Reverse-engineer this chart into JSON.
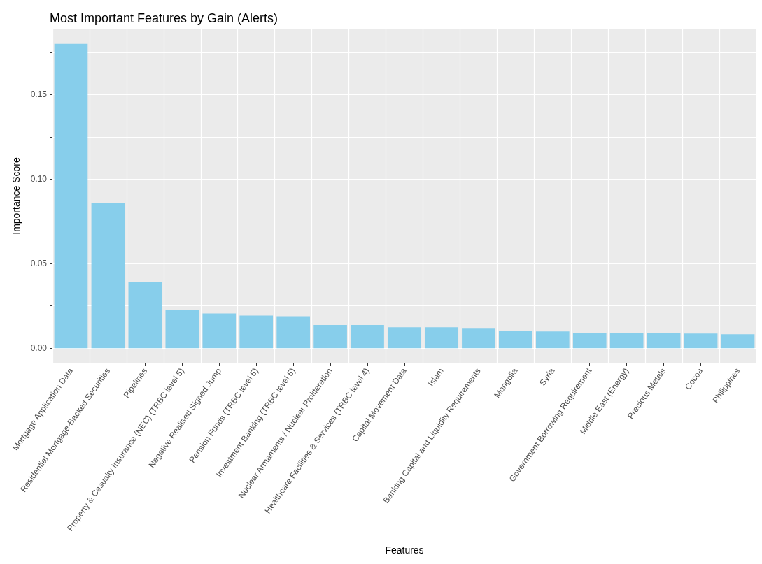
{
  "chart_data": {
    "type": "bar",
    "title": "Most Important Features by Gain (Alerts)",
    "xlabel": "Features",
    "ylabel": "Importance Score",
    "categories": [
      "Mortgage Application Data",
      "Residential Mortgage-Backed Securities",
      "Pipelines",
      "Property & Casualty Insurance (NEC) (TRBC level 5)",
      "Negative Realised Signed Jump",
      "Pension Funds (TRBC level 5)",
      "Investment Banking (TRBC level 5)",
      "Nuclear Armaments / Nuclear Proliferation",
      "Healthcare Facilities & Services (TRBC level 4)",
      "Capital Movement Data",
      "Islam",
      "Banking Capital and Liquidity Requirements",
      "Mongolia",
      "Syria",
      "Government Borrowing Requirement",
      "Middle East (Energy)",
      "Precious Metals",
      "Cocoa",
      "Philippines"
    ],
    "values": [
      0.18,
      0.0857,
      0.0389,
      0.0226,
      0.0206,
      0.0193,
      0.0189,
      0.0137,
      0.0137,
      0.0124,
      0.0124,
      0.0116,
      0.0103,
      0.0099,
      0.0089,
      0.0089,
      0.0089,
      0.0087,
      0.0083
    ],
    "color": "#87ceeb",
    "ylim": [
      -0.009,
      0.189
    ],
    "yticks": [
      {
        "value": 0,
        "label": "0.00"
      },
      {
        "value": 0.025,
        "label": null
      },
      {
        "value": 0.05,
        "label": "0.05"
      },
      {
        "value": 0.075,
        "label": null
      },
      {
        "value": 0.1,
        "label": "0.10"
      },
      {
        "value": 0.125,
        "label": null
      },
      {
        "value": 0.15,
        "label": "0.15"
      },
      {
        "value": 0.175,
        "label": null
      }
    ],
    "grid": true
  }
}
